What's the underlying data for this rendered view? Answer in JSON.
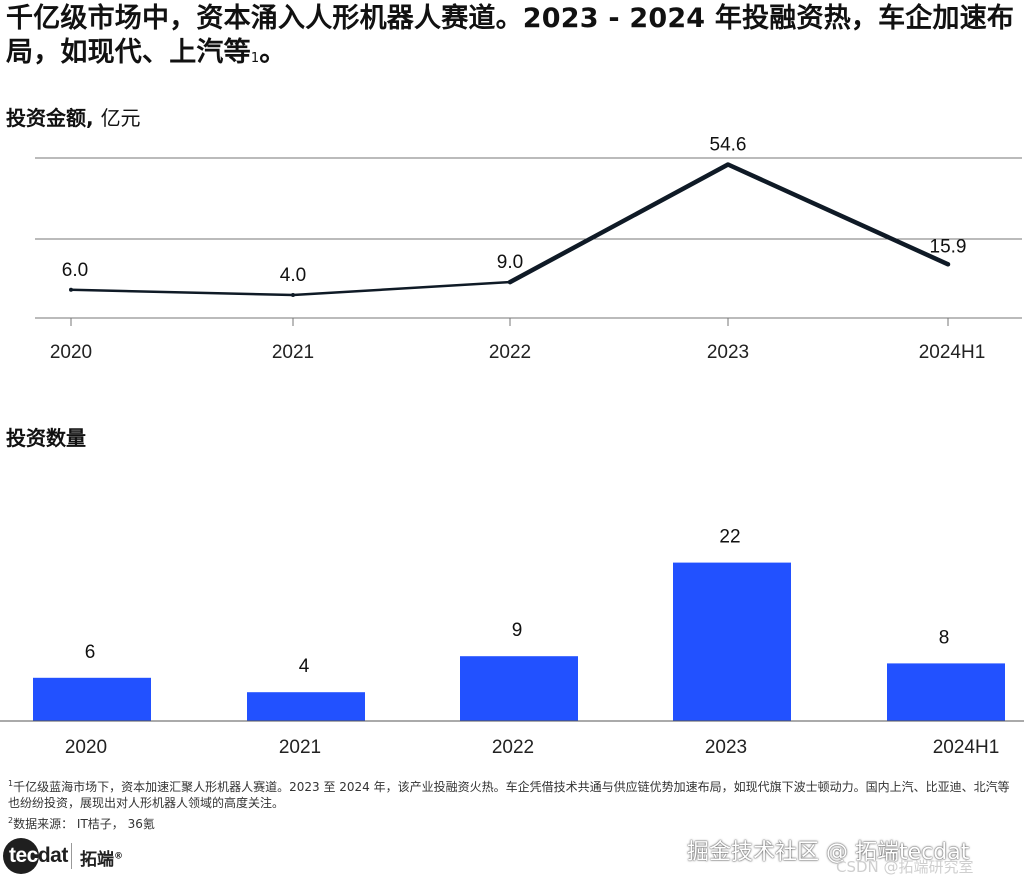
{
  "headline": {
    "text": "千亿级市场中，资本涌入人形机器人赛道。2023 - 2024 年投融资热，车企加速布局，如现代、上汽等",
    "footnote_ref": "1",
    "suffix": "。"
  },
  "chart_data": [
    {
      "type": "line",
      "title": "投资金额",
      "unit": "亿元",
      "categories": [
        "2020",
        "2021",
        "2022",
        "2023",
        "2024H1"
      ],
      "values": [
        6.0,
        4.0,
        9.0,
        54.6,
        15.9
      ],
      "data_labels": [
        "6.0",
        "4.0",
        "9.0",
        "54.6",
        "15.9"
      ],
      "grid": true,
      "line_color": "#0f1a26"
    },
    {
      "type": "bar",
      "title": "投资数量",
      "categories": [
        "2020",
        "2021",
        "2022",
        "2023",
        "2024H1"
      ],
      "values": [
        6,
        4,
        9,
        22,
        8
      ],
      "data_labels": [
        "6",
        "4",
        "9",
        "22",
        "8"
      ],
      "bar_color": "#2251ff"
    }
  ],
  "footnotes": {
    "note1_mark": "1",
    "note1": "千亿级蓝海市场下，资本加速汇聚人形机器人赛道。2023 至 2024 年，该产业投融资火热。车企凭借技术共通与供应链优势加速布局，如现代旗下波士顿动力。国内上汽、比亚迪、北汽等也纷纷投资，展现出对人形机器人领域的高度关注。",
    "note2_mark": "2",
    "note2": "数据来源： IT桔子， 36氪"
  },
  "logo": {
    "mark_a": "tec",
    "mark_b": "dat",
    "brand": "拓端",
    "registered": "®"
  },
  "watermark": {
    "main": "掘金技术社区 @ 拓端tecdat",
    "sub": "CSDN @拓端研究室"
  }
}
